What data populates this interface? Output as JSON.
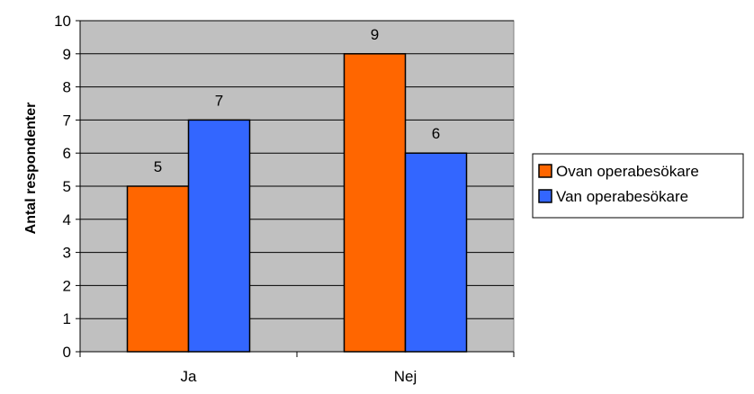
{
  "chart_data": {
    "type": "bar",
    "categories": [
      "Ja",
      "Nej"
    ],
    "series": [
      {
        "name": "Ovan operabesökare",
        "values": [
          5,
          9
        ]
      },
      {
        "name": "Van operabesökare",
        "values": [
          7,
          6
        ]
      }
    ],
    "title": "",
    "xlabel": "",
    "ylabel": "Antal respondenter",
    "ylim": [
      0,
      10
    ],
    "yticks": [
      0,
      1,
      2,
      3,
      4,
      5,
      6,
      7,
      8,
      9,
      10
    ],
    "grid": true,
    "legend": "right",
    "colors": {
      "plot_background": "#c0c0c0",
      "series": [
        "#ff6600",
        "#3366ff"
      ]
    }
  }
}
